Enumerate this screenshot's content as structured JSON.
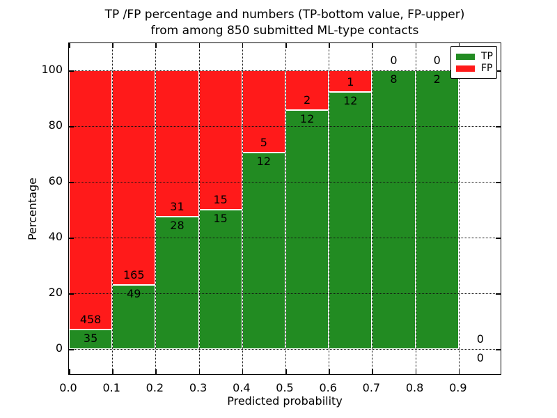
{
  "figure": {
    "title_line1": "TP /FP percentage and numbers (TP-bottom value, FP-upper)",
    "title_line2": "from among 850 submitted ML-type contacts"
  },
  "chart_data": {
    "type": "bar",
    "stacked": true,
    "normalized_to": 100,
    "title": "TP /FP percentage and numbers (TP-bottom value, FP-upper) from among 850 submitted ML-type contacts",
    "xlabel": "Predicted probability",
    "ylabel": "Percentage",
    "bin_edges": [
      0.0,
      0.1,
      0.2,
      0.3,
      0.4,
      0.5,
      0.6,
      0.7,
      0.8,
      0.9,
      1.0
    ],
    "series": [
      {
        "name": "TP",
        "color": "#228B22",
        "counts": [
          35,
          49,
          28,
          15,
          12,
          12,
          12,
          8,
          2,
          0
        ]
      },
      {
        "name": "FP",
        "color": "#FF1A1A",
        "counts": [
          458,
          165,
          31,
          15,
          5,
          2,
          1,
          0,
          0,
          0
        ]
      }
    ],
    "bar_value_labels": "raw counts shown per segment (TP below boundary, FP above boundary)",
    "x_tick_labels": [
      "0.0",
      "0.1",
      "0.2",
      "0.3",
      "0.4",
      "0.5",
      "0.6",
      "0.7",
      "0.8",
      "0.9"
    ],
    "y_ticks": [
      0,
      20,
      40,
      60,
      80,
      100
    ],
    "y_tick_labels": [
      "0",
      "20",
      "40",
      "60",
      "80",
      "100"
    ],
    "xlim": [
      0.0,
      1.0
    ],
    "ylim": [
      -9.5,
      110
    ],
    "grid": "dotted black, drawn above bars",
    "legend": {
      "position": "upper right",
      "entries": [
        {
          "label": "TP",
          "color": "#228B22"
        },
        {
          "label": "FP",
          "color": "#FF1A1A"
        }
      ]
    }
  },
  "colors": {
    "tp_green": "#228B22",
    "fp_red": "#FF1A1A",
    "background": "#FFFFFF",
    "text": "#000000",
    "bar_edge": "#FFFFFF"
  }
}
